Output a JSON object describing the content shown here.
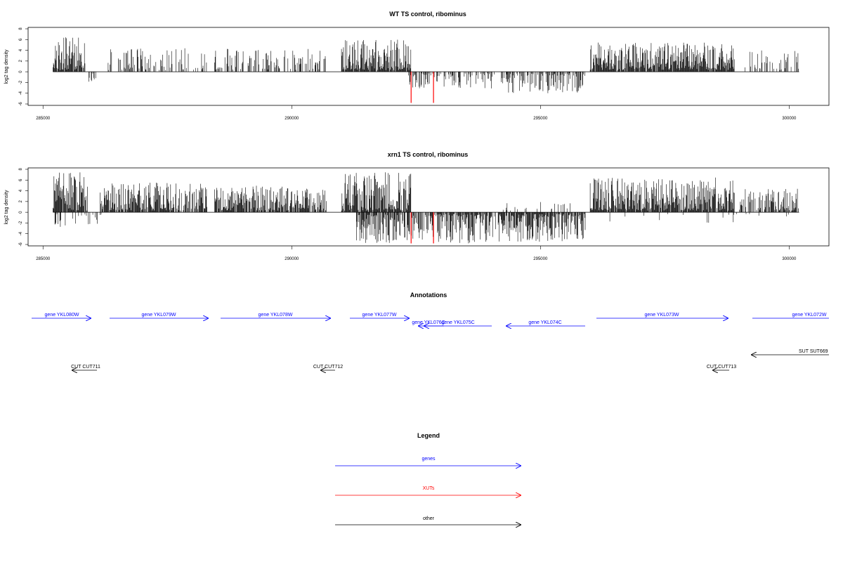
{
  "charts": [
    {
      "title": "WT TS control, ribominus",
      "ylabel": "log2 tag density",
      "yticks": [
        "-6",
        "-4",
        "-2",
        "0",
        "2",
        "4",
        "6",
        "8"
      ],
      "xticks": [
        "285000",
        "290000",
        "295000",
        "300000"
      ]
    },
    {
      "title": "xrn1 TS control, ribominus",
      "ylabel": "log2 tag density",
      "yticks": [
        "-6",
        "-4",
        "-2",
        "0",
        "2",
        "4",
        "6",
        "8"
      ],
      "xticks": [
        "285000",
        "290000",
        "295000",
        "300000"
      ]
    }
  ],
  "annotations": {
    "title": "Annotations",
    "features": [
      {
        "label": "gene YKL080W",
        "color": "#0000ff",
        "strand": "+"
      },
      {
        "label": "gene YKL079W",
        "color": "#0000ff",
        "strand": "+"
      },
      {
        "label": "gene YKL078W",
        "color": "#0000ff",
        "strand": "+"
      },
      {
        "label": "gene YKL077W",
        "color": "#0000ff",
        "strand": "+"
      },
      {
        "label": "gene YKL076C",
        "color": "#0000ff",
        "strand": "-"
      },
      {
        "label": "gene YKL075C",
        "color": "#0000ff",
        "strand": "-"
      },
      {
        "label": "gene YKL074C",
        "color": "#0000ff",
        "strand": "-"
      },
      {
        "label": "gene YKL073W",
        "color": "#0000ff",
        "strand": "+"
      },
      {
        "label": "gene YKL072W",
        "color": "#0000ff",
        "strand": "+"
      },
      {
        "label": "SUT SUT669",
        "color": "#000000",
        "strand": "-"
      },
      {
        "label": "CUT CUT711",
        "color": "#000000",
        "strand": "-"
      },
      {
        "label": "CUT CUT712",
        "color": "#000000",
        "strand": "-"
      },
      {
        "label": "CUT CUT713",
        "color": "#000000",
        "strand": "-"
      }
    ]
  },
  "legend": {
    "title": "Legend",
    "items": [
      {
        "label": "genes",
        "color": "#0000ff"
      },
      {
        "label": "XUTs",
        "color": "#ff0000"
      },
      {
        "label": "other",
        "color": "#000000"
      }
    ]
  },
  "chart_data": [
    {
      "type": "bar",
      "title": "WT TS control, ribominus",
      "xlabel": "",
      "ylabel": "log2 tag density",
      "xlim": [
        284700,
        300800
      ],
      "ylim": [
        -6,
        8
      ],
      "x_ticks": [
        285000,
        290000,
        295000,
        300000
      ],
      "y_ticks": [
        -6,
        -4,
        -2,
        0,
        2,
        4,
        6,
        8
      ],
      "grid": false,
      "regions": [
        {
          "start": 285200,
          "end": 285850,
          "strand": "+",
          "max": 6.5,
          "density": 0.9
        },
        {
          "start": 285900,
          "end": 286100,
          "strand": "-",
          "max": 2.0,
          "density": 0.4
        },
        {
          "start": 286200,
          "end": 288300,
          "strand": "+",
          "max": 4.5,
          "density": 0.35
        },
        {
          "start": 288450,
          "end": 290700,
          "strand": "+",
          "max": 4.3,
          "density": 0.4
        },
        {
          "start": 291000,
          "end": 292400,
          "strand": "+",
          "max": 6.0,
          "density": 0.95
        },
        {
          "start": 292350,
          "end": 294100,
          "strand": "-",
          "max": 3.2,
          "density": 0.4
        },
        {
          "start": 294200,
          "end": 295900,
          "strand": "-",
          "max": 4.0,
          "density": 0.55
        },
        {
          "start": 296000,
          "end": 298900,
          "strand": "+",
          "max": 5.5,
          "density": 0.9
        },
        {
          "start": 299100,
          "end": 300200,
          "strand": "+",
          "max": 4.0,
          "density": 0.3
        }
      ],
      "highlights": [
        {
          "x": 292400,
          "y": -5.8,
          "color": "#ff0000"
        },
        {
          "x": 292850,
          "y": -5.8,
          "color": "#ff0000"
        }
      ]
    },
    {
      "type": "bar",
      "title": "xrn1 TS control, ribominus",
      "xlabel": "",
      "ylabel": "log2 tag density",
      "xlim": [
        284700,
        300800
      ],
      "ylim": [
        -6,
        8
      ],
      "x_ticks": [
        285000,
        290000,
        295000,
        300000
      ],
      "y_ticks": [
        -6,
        -4,
        -2,
        0,
        2,
        4,
        6,
        8
      ],
      "grid": false,
      "regions": [
        {
          "start": 285200,
          "end": 285900,
          "strand": "+",
          "max": 7.5,
          "density": 0.95
        },
        {
          "start": 285200,
          "end": 286200,
          "strand": "-",
          "max": 3.0,
          "density": 0.3
        },
        {
          "start": 286150,
          "end": 288300,
          "strand": "+",
          "max": 5.5,
          "density": 0.8
        },
        {
          "start": 288450,
          "end": 290700,
          "strand": "+",
          "max": 5.0,
          "density": 0.8
        },
        {
          "start": 291000,
          "end": 292400,
          "strand": "+",
          "max": 7.5,
          "density": 0.95
        },
        {
          "start": 291300,
          "end": 294100,
          "strand": "-",
          "max": 5.8,
          "density": 0.75
        },
        {
          "start": 294150,
          "end": 295900,
          "strand": "-",
          "max": 5.5,
          "density": 0.9
        },
        {
          "start": 294200,
          "end": 295600,
          "strand": "+",
          "max": 2.0,
          "density": 0.15
        },
        {
          "start": 296000,
          "end": 298900,
          "strand": "+",
          "max": 6.5,
          "density": 0.9
        },
        {
          "start": 299000,
          "end": 300200,
          "strand": "+",
          "max": 4.5,
          "density": 0.6
        },
        {
          "start": 296000,
          "end": 300100,
          "strand": "-",
          "max": 2.0,
          "density": 0.05
        }
      ],
      "highlights": [
        {
          "x": 292400,
          "y": -5.8,
          "color": "#ff0000"
        },
        {
          "x": 292850,
          "y": -5.8,
          "color": "#ff0000"
        }
      ]
    }
  ]
}
